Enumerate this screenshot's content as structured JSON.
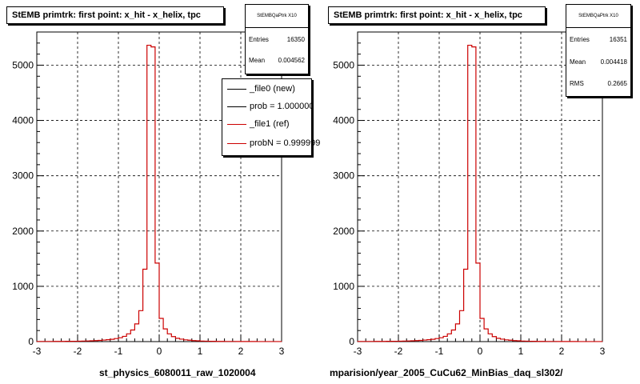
{
  "chart_data": [
    {
      "type": "bar",
      "title": "StEMB primtrk: first point: x_hit - x_helix, tpc",
      "xlabel": "st_physics_6080011_raw_1020004",
      "ylabel": "",
      "xlim": [
        -3,
        3
      ],
      "ylim": [
        0,
        5600
      ],
      "xticks": [
        -3,
        -2,
        -1,
        0,
        1,
        2,
        3
      ],
      "yticks": [
        0,
        1000,
        2000,
        3000,
        4000,
        5000
      ],
      "grid": true,
      "bin_edges": [
        -3.0,
        -2.9,
        -2.8,
        -2.7,
        -2.6,
        -2.5,
        -2.4,
        -2.3,
        -2.2,
        -2.1,
        -2.0,
        -1.9,
        -1.8,
        -1.7,
        -1.6,
        -1.5,
        -1.4,
        -1.3,
        -1.2,
        -1.1,
        -1.0,
        -0.9,
        -0.8,
        -0.7,
        -0.6,
        -0.5,
        -0.4,
        -0.3,
        -0.2,
        -0.1,
        0.0,
        0.1,
        0.2,
        0.3,
        0.4,
        0.5,
        0.6,
        0.7,
        0.8,
        0.9,
        1.0,
        1.1,
        1.2,
        1.3,
        1.4,
        1.5,
        1.6,
        1.7,
        1.8,
        1.9,
        2.0,
        2.1,
        2.2,
        2.3,
        2.4,
        2.5,
        2.6,
        2.7,
        2.8,
        2.9,
        3.0
      ],
      "series": [
        {
          "name": "_file1 (ref)",
          "color": "#cc0000",
          "values": [
            3,
            3,
            3,
            3,
            4,
            4,
            4,
            5,
            5,
            6,
            8,
            10,
            12,
            15,
            18,
            22,
            28,
            34,
            42,
            55,
            70,
            95,
            140,
            210,
            320,
            560,
            1310,
            5360,
            5330,
            1420,
            420,
            230,
            140,
            90,
            60,
            44,
            32,
            25,
            18,
            14,
            10,
            8,
            6,
            5,
            4,
            4,
            3,
            3,
            3,
            2,
            2,
            2,
            2,
            2,
            1,
            1,
            1,
            1,
            1,
            1
          ]
        }
      ],
      "stats": {
        "header": "StEMBQaPtrk X10",
        "entries_label": "Entries",
        "entries": "16350",
        "mean_label": "Mean",
        "mean": "0.004562"
      },
      "legend": [
        {
          "label": "_file0 (new)",
          "color": "#000000"
        },
        {
          "label": "prob = 1.000000",
          "color": "#000000"
        },
        {
          "label": "_file1 (ref)",
          "color": "#cc0000"
        },
        {
          "label": "probN = 0.999999",
          "color": "#cc0000"
        }
      ]
    },
    {
      "type": "bar",
      "title": "StEMB primtrk: first point: x_hit - x_helix, tpc",
      "xlabel": "mparision/year_2005_CuCu62_MinBias_daq_sl302/",
      "ylabel": "",
      "xlim": [
        -3,
        3
      ],
      "ylim": [
        0,
        5600
      ],
      "xticks": [
        -3,
        -2,
        -1,
        0,
        1,
        2,
        3
      ],
      "yticks": [
        0,
        1000,
        2000,
        3000,
        4000,
        5000
      ],
      "grid": true,
      "bin_edges": [
        -3.0,
        -2.9,
        -2.8,
        -2.7,
        -2.6,
        -2.5,
        -2.4,
        -2.3,
        -2.2,
        -2.1,
        -2.0,
        -1.9,
        -1.8,
        -1.7,
        -1.6,
        -1.5,
        -1.4,
        -1.3,
        -1.2,
        -1.1,
        -1.0,
        -0.9,
        -0.8,
        -0.7,
        -0.6,
        -0.5,
        -0.4,
        -0.3,
        -0.2,
        -0.1,
        0.0,
        0.1,
        0.2,
        0.3,
        0.4,
        0.5,
        0.6,
        0.7,
        0.8,
        0.9,
        1.0,
        1.1,
        1.2,
        1.3,
        1.4,
        1.5,
        1.6,
        1.7,
        1.8,
        1.9,
        2.0,
        2.1,
        2.2,
        2.3,
        2.4,
        2.5,
        2.6,
        2.7,
        2.8,
        2.9,
        3.0
      ],
      "series": [
        {
          "name": "",
          "color": "#cc0000",
          "values": [
            3,
            3,
            3,
            3,
            4,
            4,
            4,
            5,
            5,
            6,
            8,
            10,
            12,
            15,
            18,
            22,
            28,
            34,
            42,
            55,
            70,
            95,
            140,
            210,
            320,
            560,
            1310,
            5360,
            5330,
            1420,
            420,
            230,
            140,
            90,
            60,
            44,
            32,
            25,
            18,
            14,
            10,
            8,
            6,
            5,
            4,
            4,
            3,
            3,
            3,
            2,
            2,
            2,
            2,
            2,
            1,
            1,
            1,
            1,
            1,
            1
          ]
        }
      ],
      "stats": {
        "header": "StEMBQaPtrk X10",
        "entries_label": "Entries",
        "entries": "16351",
        "mean_label": "Mean",
        "mean": "0.004418",
        "rms_label": "RMS",
        "rms": "0.2665"
      }
    }
  ]
}
